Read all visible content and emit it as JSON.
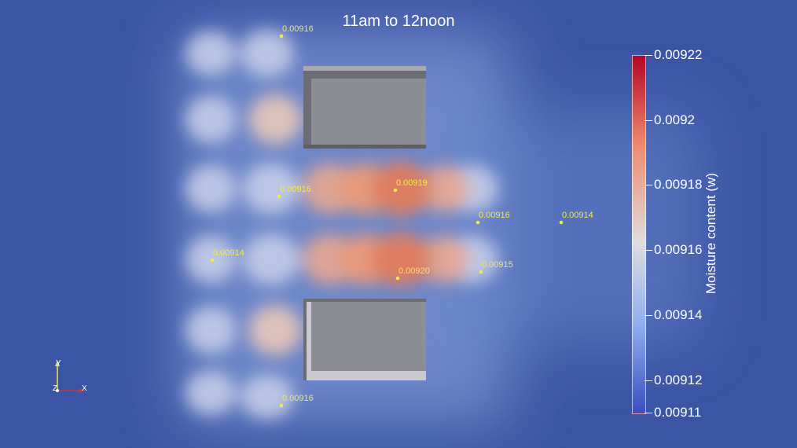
{
  "title": "11am to 12noon",
  "colorbar": {
    "title": "Moisture content (w)",
    "min": 0.00911,
    "max": 0.00922,
    "ticks": [
      "0.00922",
      "0.0092",
      "0.00918",
      "0.00916",
      "0.00914",
      "0.00912",
      "0.00911"
    ],
    "tick_values": [
      0.00922,
      0.0092,
      0.00918,
      0.00916,
      0.00914,
      0.00912,
      0.00911
    ],
    "colors": {
      "high": "#b40426",
      "mid": "#dddddd",
      "low": "#3b4cc0"
    }
  },
  "probes": [
    {
      "label": "0.00916"
    },
    {
      "label": "0.00916"
    },
    {
      "label": "0.00919"
    },
    {
      "label": "0.00916"
    },
    {
      "label": "0.00914"
    },
    {
      "label": "0.00914"
    },
    {
      "label": "0.00920"
    },
    {
      "label": "0.00915"
    },
    {
      "label": "0.00916"
    }
  ],
  "axes": {
    "y": "Y",
    "z": "Z",
    "x": "X"
  },
  "colors": {
    "background": "#3b54a4",
    "building": "#8d8d96",
    "probe": "#f4e84a"
  }
}
